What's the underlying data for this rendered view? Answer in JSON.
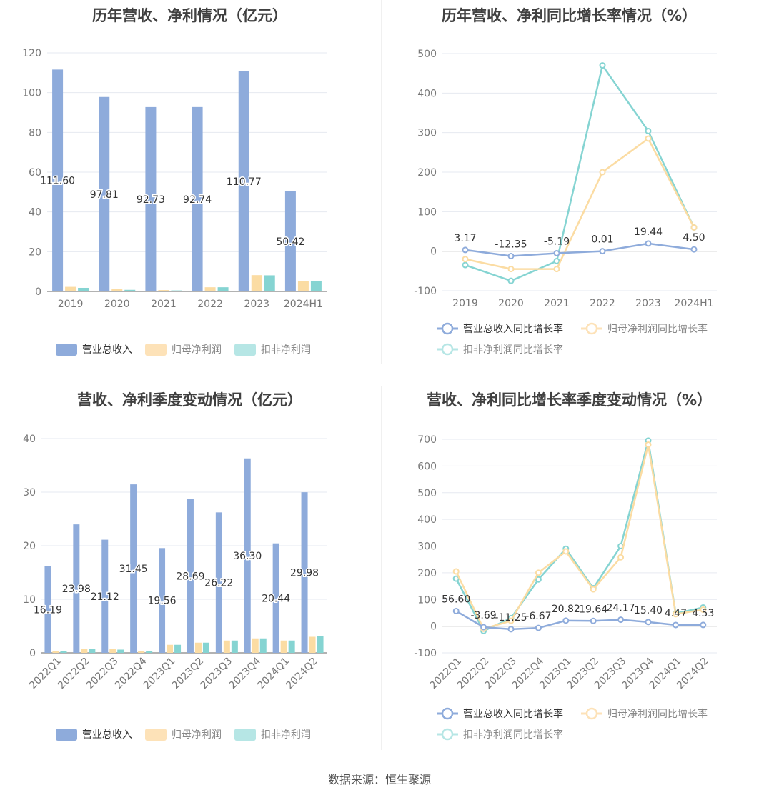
{
  "source_text": "数据来源：恒生聚源",
  "colors": {
    "revenue": "#8eabdb",
    "parent": "#fbdca3",
    "deducted": "#85d4d2",
    "revenue_legend": "#8eabdb",
    "parent_legend": "#fde2b8",
    "deducted_legend": "#b6e6e5"
  },
  "chart_data": [
    {
      "type": "bar",
      "title": "历年营收、净利情况（亿元）",
      "categories": [
        "2019",
        "2020",
        "2021",
        "2022",
        "2023",
        "2024H1"
      ],
      "ylim": [
        0,
        120
      ],
      "yticks": [
        0,
        20,
        40,
        60,
        80,
        100,
        120
      ],
      "series": [
        {
          "name": "营业总收入",
          "values": [
            111.6,
            97.81,
            92.73,
            92.74,
            110.77,
            50.42
          ],
          "labels": [
            "111.60",
            "97.81",
            "92.73",
            "92.74",
            "110.77",
            "50.42"
          ]
        },
        {
          "name": "归母净利润",
          "values": [
            2.3,
            1.4,
            0.7,
            2.1,
            8.2,
            5.3
          ]
        },
        {
          "name": "扣非净利润",
          "values": [
            1.8,
            0.8,
            0.5,
            2.1,
            8.1,
            5.4
          ]
        }
      ],
      "legend_position": "bottom",
      "grid": true
    },
    {
      "type": "line",
      "title": "历年营收、净利同比增长率情况（%）",
      "categories": [
        "2019",
        "2020",
        "2021",
        "2022",
        "2023",
        "2024H1"
      ],
      "ylim": [
        -100,
        500
      ],
      "yticks": [
        -100,
        0,
        100,
        200,
        300,
        400,
        500
      ],
      "series": [
        {
          "name": "营业总收入同比增长率",
          "values": [
            3.17,
            -12.35,
            -5.19,
            0.01,
            19.44,
            4.5
          ],
          "labels": [
            "3.17",
            "-12.35",
            "-5.19",
            "0.01",
            "19.44",
            "4.50"
          ]
        },
        {
          "name": "归母净利润同比增长率",
          "values": [
            -20,
            -45,
            -45,
            200,
            285,
            60
          ]
        },
        {
          "name": "扣非净利润同比增长率",
          "values": [
            -35,
            -75,
            -25,
            470,
            304,
            60
          ]
        }
      ],
      "legend_position": "bottom",
      "grid": true
    },
    {
      "type": "bar",
      "title": "营收、净利季度变动情况（亿元）",
      "categories": [
        "2022Q1",
        "2022Q2",
        "2022Q3",
        "2022Q4",
        "2023Q1",
        "2023Q2",
        "2023Q3",
        "2023Q4",
        "2024Q1",
        "2024Q2"
      ],
      "ylim": [
        0,
        40
      ],
      "yticks": [
        0,
        10,
        20,
        30,
        40
      ],
      "series": [
        {
          "name": "营业总收入",
          "values": [
            16.19,
            23.98,
            21.12,
            31.45,
            19.56,
            28.69,
            26.22,
            36.3,
            20.44,
            29.98
          ],
          "labels": [
            "16.19",
            "23.98",
            "21.12",
            "31.45",
            "19.56",
            "28.69",
            "26.22",
            "36.30",
            "20.44",
            "29.98"
          ]
        },
        {
          "name": "归母净利润",
          "values": [
            0.4,
            0.8,
            0.7,
            0.4,
            1.5,
            1.9,
            2.3,
            2.7,
            2.3,
            3.0
          ]
        },
        {
          "name": "扣非净利润",
          "values": [
            0.4,
            0.8,
            0.6,
            0.4,
            1.5,
            1.9,
            2.3,
            2.7,
            2.3,
            3.1
          ]
        }
      ],
      "legend_position": "bottom",
      "grid": true
    },
    {
      "type": "line",
      "title": "营收、净利同比增长率季度变动情况（%）",
      "categories": [
        "2022Q1",
        "2022Q2",
        "2022Q3",
        "2022Q4",
        "2023Q1",
        "2023Q2",
        "2023Q3",
        "2023Q4",
        "2024Q1",
        "2024Q2"
      ],
      "ylim": [
        -100,
        700
      ],
      "yticks": [
        -100,
        0,
        100,
        200,
        300,
        400,
        500,
        600,
        700
      ],
      "series": [
        {
          "name": "营业总收入同比增长率",
          "values": [
            56.6,
            -3.69,
            -11.25,
            -6.67,
            20.82,
            19.64,
            24.17,
            15.4,
            4.47,
            4.53
          ],
          "labels": [
            "56.60",
            "-3.69",
            "-11.25",
            "-6.67",
            "20.82",
            "19.64",
            "24.17",
            "15.40",
            "4.47",
            "4.53"
          ]
        },
        {
          "name": "归母净利润同比增长率",
          "values": [
            205,
            -10,
            20,
            200,
            280,
            138,
            258,
            680,
            45,
            62
          ]
        },
        {
          "name": "扣非净利润同比增长率",
          "values": [
            178,
            -18,
            30,
            175,
            290,
            142,
            300,
            695,
            48,
            70
          ]
        }
      ],
      "legend_position": "bottom",
      "grid": true
    }
  ]
}
